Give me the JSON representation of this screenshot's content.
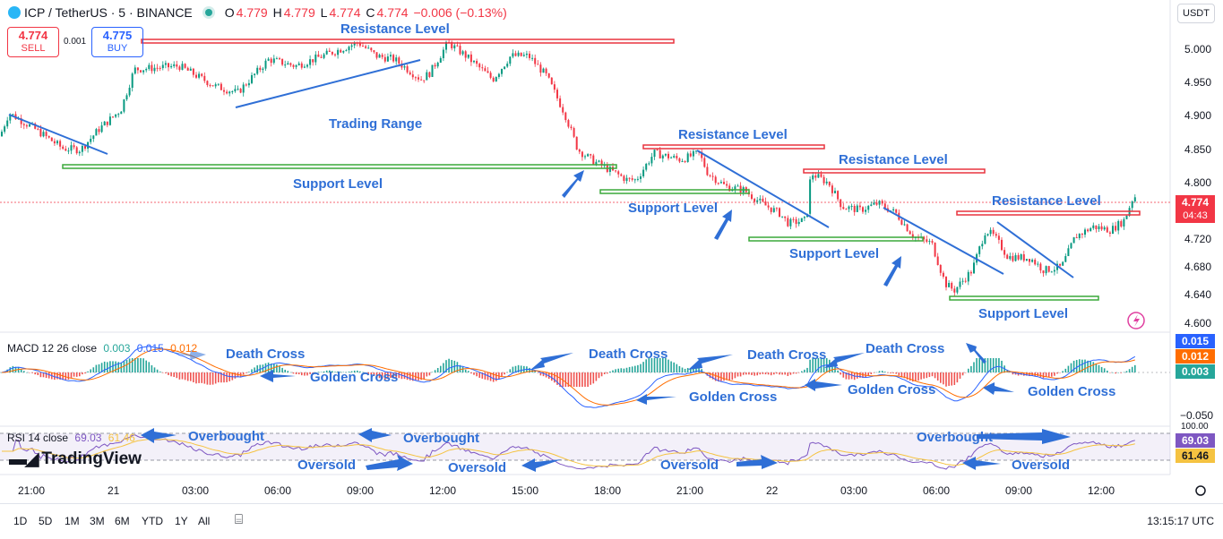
{
  "header": {
    "symbol": "ICP / TetherUS · 5 · BINANCE",
    "open_label": "O",
    "open": "4.779",
    "high_label": "H",
    "high": "4.779",
    "low_label": "L",
    "low": "4.774",
    "close_label": "C",
    "close": "4.774",
    "change": "−0.006 (−0.13%)",
    "currency": "USDT"
  },
  "trade": {
    "sell_price": "4.774",
    "sell_label": "SELL",
    "spread": "0.001",
    "buy_price": "4.775",
    "buy_label": "BUY"
  },
  "colors": {
    "up": "#089981",
    "down": "#f23645",
    "annotation": "#2f6fd6",
    "resistance": "#e8333f",
    "support": "#3aa83a",
    "macd": "#2962ff",
    "signal": "#ff6d00",
    "rsi": "#7e57c2",
    "rsi_ma": "#f5c341"
  },
  "chart_data": [
    {
      "type": "candlestick",
      "title": "ICP / TetherUS · 5 · BINANCE",
      "y_ticks": [
        "5.000",
        "4.950",
        "4.900",
        "4.850",
        "4.800",
        "4.720",
        "4.680",
        "4.640",
        "4.600"
      ],
      "x_ticks": [
        "21:00",
        "21",
        "03:00",
        "06:00",
        "09:00",
        "12:00",
        "15:00",
        "18:00",
        "21:00",
        "22",
        "03:00",
        "06:00",
        "09:00",
        "12:00"
      ],
      "last_price": "4.774",
      "countdown": "04:43",
      "price_path": [
        [
          0,
          4.87
        ],
        [
          10,
          4.905
        ],
        [
          40,
          4.88
        ],
        [
          70,
          4.852
        ],
        [
          90,
          4.85
        ],
        [
          110,
          4.88
        ],
        [
          135,
          4.91
        ],
        [
          150,
          4.97
        ],
        [
          200,
          4.975
        ],
        [
          240,
          4.945
        ],
        [
          265,
          4.935
        ],
        [
          300,
          4.985
        ],
        [
          330,
          4.975
        ],
        [
          360,
          4.99
        ],
        [
          400,
          5.01
        ],
        [
          420,
          4.99
        ],
        [
          440,
          4.985
        ],
        [
          470,
          4.955
        ],
        [
          480,
          4.965
        ],
        [
          500,
          5.01
        ],
        [
          520,
          4.99
        ],
        [
          550,
          4.955
        ],
        [
          570,
          4.99
        ],
        [
          590,
          4.99
        ],
        [
          610,
          4.96
        ],
        [
          630,
          4.905
        ],
        [
          645,
          4.85
        ],
        [
          660,
          4.835
        ],
        [
          680,
          4.82
        ],
        [
          700,
          4.805
        ],
        [
          710,
          4.805
        ],
        [
          730,
          4.845
        ],
        [
          760,
          4.835
        ],
        [
          780,
          4.845
        ],
        [
          790,
          4.815
        ],
        [
          810,
          4.795
        ],
        [
          830,
          4.79
        ],
        [
          850,
          4.77
        ],
        [
          870,
          4.755
        ],
        [
          880,
          4.74
        ],
        [
          900,
          4.745
        ],
        [
          905,
          4.815
        ],
        [
          925,
          4.8
        ],
        [
          940,
          4.765
        ],
        [
          960,
          4.76
        ],
        [
          980,
          4.77
        ],
        [
          1000,
          4.755
        ],
        [
          1020,
          4.72
        ],
        [
          1040,
          4.71
        ],
        [
          1055,
          4.65
        ],
        [
          1065,
          4.64
        ],
        [
          1085,
          4.67
        ],
        [
          1100,
          4.73
        ],
        [
          1110,
          4.72
        ],
        [
          1125,
          4.69
        ],
        [
          1150,
          4.688
        ],
        [
          1165,
          4.67
        ],
        [
          1185,
          4.675
        ],
        [
          1200,
          4.72
        ],
        [
          1220,
          4.735
        ],
        [
          1240,
          4.73
        ],
        [
          1255,
          4.745
        ],
        [
          1265,
          4.78
        ]
      ],
      "annotations": {
        "resistance_1": "Resistance Level",
        "resistance_2": "Resistance Level",
        "resistance_3": "Resistance Level",
        "resistance_4": "Resistance Level",
        "support_1": "Support Level",
        "support_2": "Support Level",
        "support_3": "Support Level",
        "support_4": "Support Level",
        "trading_range": "Trading Range"
      }
    },
    {
      "type": "line",
      "title": "MACD 12 26 close",
      "legend_values": [
        "0.003",
        "0.015",
        "0.012"
      ],
      "axis_values": [
        "0.015",
        "0.012",
        "0.003"
      ],
      "y_ticks": [
        "−0.050"
      ],
      "annotations": [
        "Death Cross",
        "Golden Cross",
        "Death Cross",
        "Golden Cross",
        "Death Cross",
        "Golden Cross",
        "Death Cross",
        "Golden Cross",
        "Golden Cross"
      ]
    },
    {
      "type": "line",
      "title": "RSI 14 close",
      "legend_values": [
        "69.03",
        "61.46"
      ],
      "axis_values": [
        "69.03",
        "61.46"
      ],
      "y_ticks": [
        "100.00"
      ],
      "annotations": [
        "Overbought",
        "Overbought",
        "Overbought",
        "Oversold",
        "Oversold",
        "Oversold",
        "Oversold"
      ]
    }
  ],
  "bottom": {
    "ranges": [
      "1D",
      "5D",
      "1M",
      "3M",
      "6M",
      "YTD",
      "1Y",
      "All"
    ],
    "clock": "13:15:17 UTC"
  },
  "logo_text": "TradingView"
}
